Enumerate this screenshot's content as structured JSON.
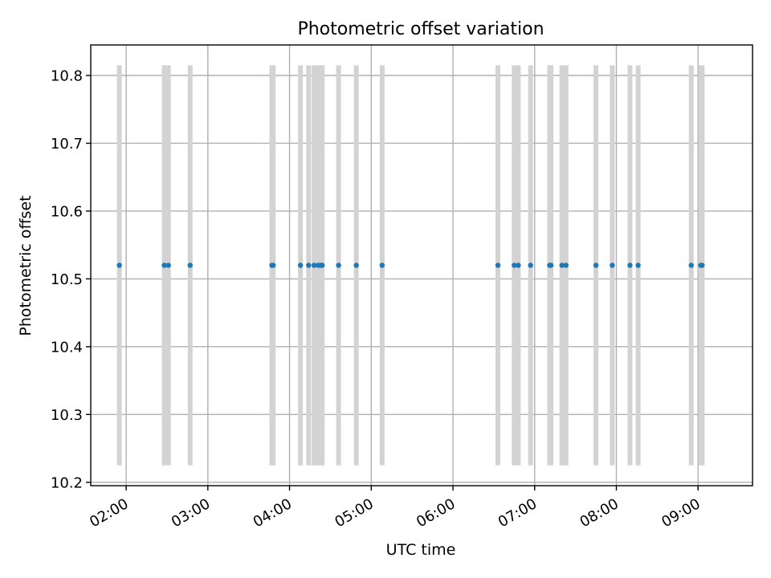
{
  "chart_data": {
    "type": "scatter",
    "title": "Photometric offset variation",
    "xlabel": "UTC time",
    "ylabel": "Photometric offset",
    "x_axis_type": "time",
    "xlim": [
      "01:34",
      "09:40"
    ],
    "ylim": [
      10.195,
      10.845
    ],
    "x_ticks": [
      "02:00",
      "03:00",
      "04:00",
      "05:00",
      "06:00",
      "07:00",
      "08:00",
      "09:00"
    ],
    "y_ticks": [
      "10.2",
      "10.3",
      "10.4",
      "10.5",
      "10.6",
      "10.7",
      "10.8"
    ],
    "grid": true,
    "point_color": "#1f77b4",
    "band_color": "#d3d3d3",
    "band_range": [
      10.225,
      10.815
    ],
    "series": [
      {
        "x": [
          "01:55",
          "02:28",
          "02:31",
          "02:47",
          "03:47",
          "03:48",
          "04:08",
          "04:14",
          "04:18",
          "04:21",
          "04:23",
          "04:24",
          "04:36",
          "04:49",
          "05:08",
          "06:33",
          "06:45",
          "06:48",
          "06:57",
          "07:11",
          "07:12",
          "07:20",
          "07:23",
          "07:45",
          "07:57",
          "08:10",
          "08:16",
          "08:55",
          "09:02",
          "09:03"
        ],
        "y": [
          10.52,
          10.52,
          10.52,
          10.52,
          10.52,
          10.52,
          10.52,
          10.52,
          10.52,
          10.52,
          10.52,
          10.52,
          10.52,
          10.52,
          10.52,
          10.52,
          10.52,
          10.52,
          10.52,
          10.52,
          10.52,
          10.52,
          10.52,
          10.52,
          10.52,
          10.52,
          10.52,
          10.52,
          10.52,
          10.52
        ]
      }
    ]
  }
}
